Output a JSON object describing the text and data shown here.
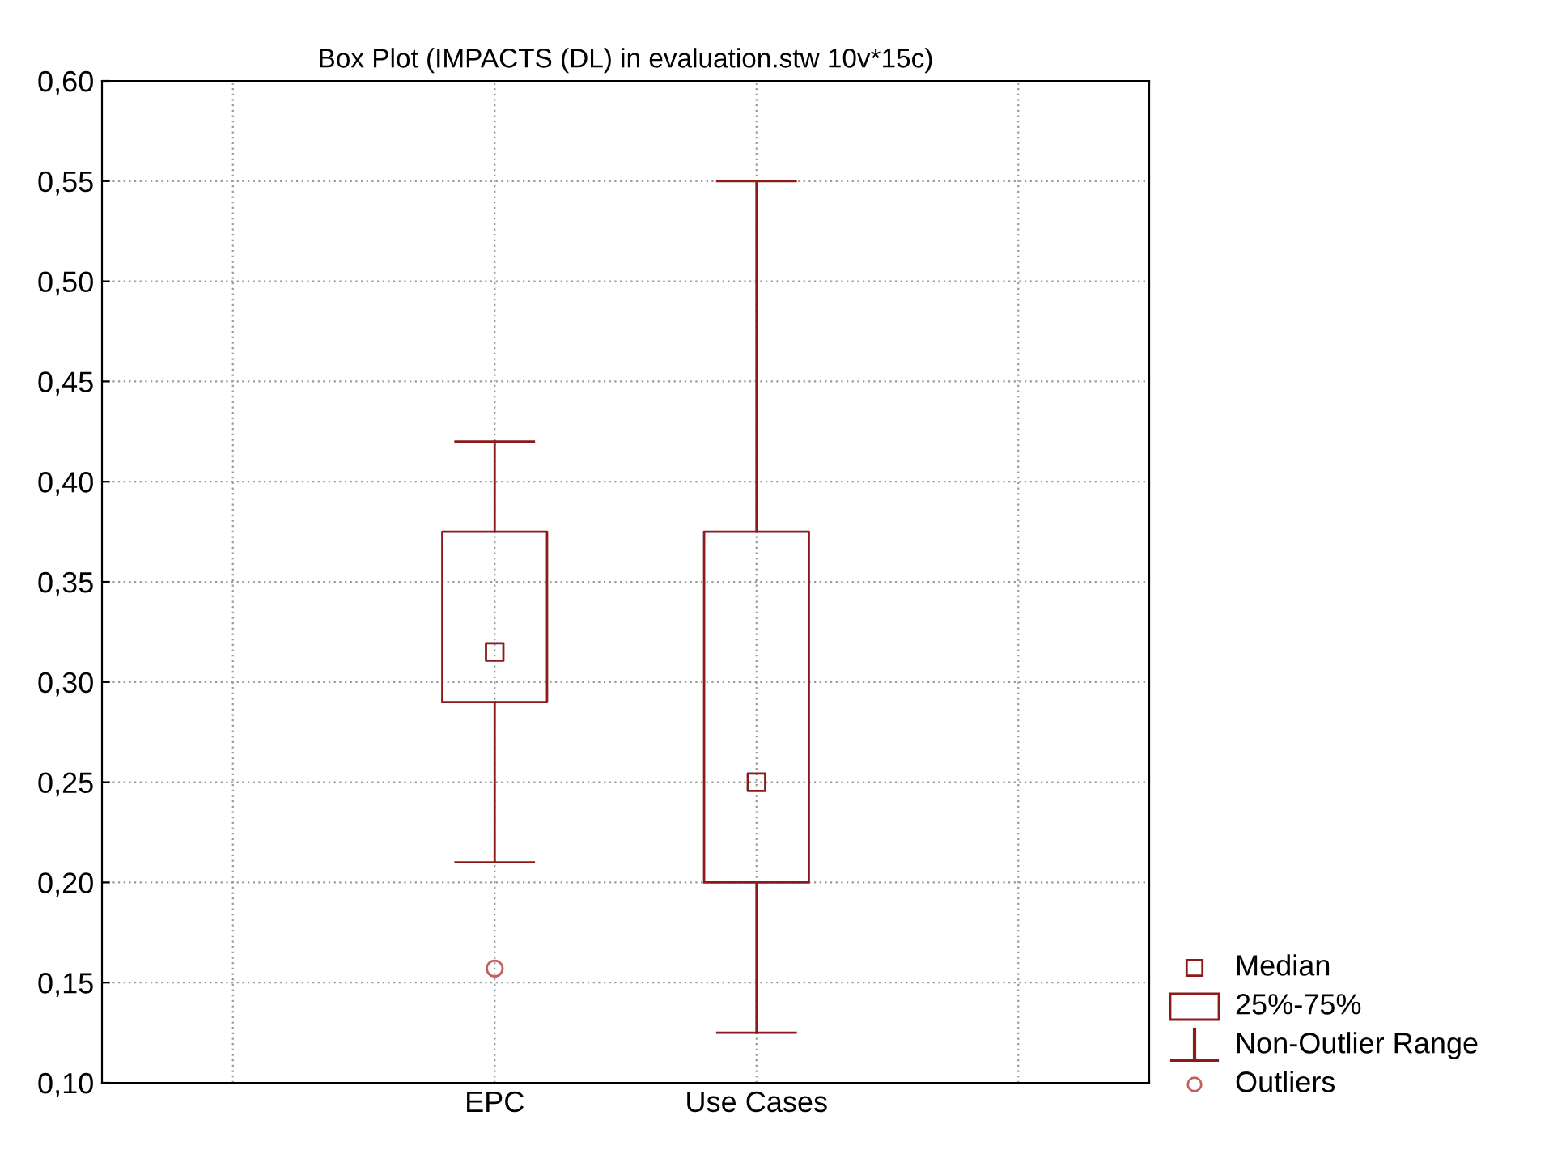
{
  "chart_data": {
    "type": "box",
    "title": "Box Plot (IMPACTS (DL) in evaluation.stw 10v*15c)",
    "categories": [
      "EPC",
      "Use Cases"
    ],
    "boxes": [
      {
        "low": 0.21,
        "q1": 0.29,
        "median": 0.315,
        "q3": 0.375,
        "high": 0.42,
        "outliers": [
          0.157
        ]
      },
      {
        "low": 0.125,
        "q1": 0.2,
        "median": 0.25,
        "q3": 0.375,
        "high": 0.55
      }
    ],
    "color": "#8b1a1a",
    "ylim": [
      0.1,
      0.6
    ],
    "yticks": [
      {
        "value": 0.1,
        "label": "0,10"
      },
      {
        "value": 0.15,
        "label": "0,15"
      },
      {
        "value": 0.2,
        "label": "0,20"
      },
      {
        "value": 0.25,
        "label": "0,25"
      },
      {
        "value": 0.3,
        "label": "0,30"
      },
      {
        "value": 0.35,
        "label": "0,35"
      },
      {
        "value": 0.4,
        "label": "0,40"
      },
      {
        "value": 0.45,
        "label": "0,45"
      },
      {
        "value": 0.5,
        "label": "0,50"
      },
      {
        "value": 0.55,
        "label": "0,55"
      },
      {
        "value": 0.6,
        "label": "0,60"
      }
    ],
    "grid": true,
    "annotations": [
      "Median",
      "25%-75%",
      "Non-Outlier Range",
      "Outliers"
    ]
  }
}
